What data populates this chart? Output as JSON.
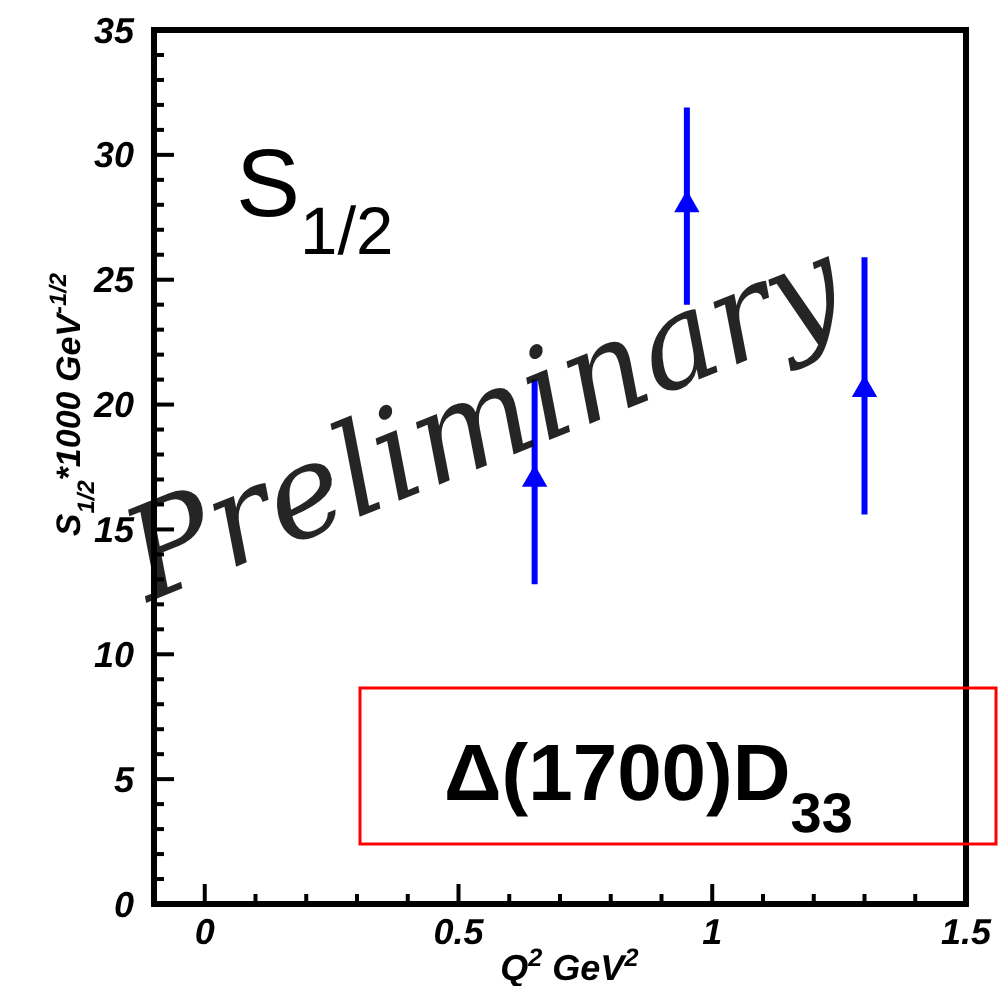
{
  "chart_data": {
    "type": "scatter",
    "xlabel": "Q$^{2}$ GeV$^{2}$",
    "ylabel": "S$_{1/2}$*1000 GeV$^{-1/2}$",
    "annotations": [
      "S$_{1/2}$",
      "Δ(1700)D$_{33}$",
      "Preliminary"
    ],
    "x": [
      0.65,
      0.95,
      1.3
    ],
    "series": [
      {
        "color": "#0000ff",
        "values": [
          17,
          28,
          20.6
        ],
        "errors": [
          [
            12.8,
            21.0
          ],
          [
            24.0,
            31.9
          ],
          [
            15.6,
            25.9
          ]
        ]
      }
    ],
    "marker": "triangle",
    "grid": false,
    "xlim": [
      -0.1,
      1.5
    ],
    "xticks": [
      {
        "value": -0.1,
        "label": null
      },
      0,
      {
        "value": 0.1,
        "label": null
      },
      {
        "value": 0.2,
        "label": null
      },
      {
        "value": 0.3,
        "label": null
      },
      {
        "value": 0.4,
        "label": null
      },
      0.5,
      {
        "value": 0.6,
        "label": null
      },
      {
        "value": 0.7,
        "label": null
      },
      {
        "value": 0.8,
        "label": null
      },
      {
        "value": 0.9,
        "label": null
      },
      1,
      {
        "value": 1.1,
        "label": null
      },
      {
        "value": 1.2,
        "label": null
      },
      {
        "value": 1.3,
        "label": null
      },
      {
        "value": 1.4,
        "label": null
      },
      1.5
    ],
    "ylim": [
      0,
      35
    ],
    "yticks": [
      0,
      {
        "value": 1,
        "label": null
      },
      {
        "value": 2,
        "label": null
      },
      {
        "value": 3,
        "label": null
      },
      {
        "value": 4,
        "label": null
      },
      5,
      {
        "value": 6,
        "label": null
      },
      {
        "value": 7,
        "label": null
      },
      {
        "value": 8,
        "label": null
      },
      {
        "value": 9,
        "label": null
      },
      10,
      {
        "value": 11,
        "label": null
      },
      {
        "value": 12,
        "label": null
      },
      {
        "value": 13,
        "label": null
      },
      {
        "value": 14,
        "label": null
      },
      15,
      {
        "value": 16,
        "label": null
      },
      {
        "value": 17,
        "label": null
      },
      {
        "value": 18,
        "label": null
      },
      {
        "value": 19,
        "label": null
      },
      20,
      {
        "value": 21,
        "label": null
      },
      {
        "value": 22,
        "label": null
      },
      {
        "value": 23,
        "label": null
      },
      {
        "value": 24,
        "label": null
      },
      25,
      {
        "value": 26,
        "label": null
      },
      {
        "value": 27,
        "label": null
      },
      {
        "value": 28,
        "label": null
      },
      {
        "value": 29,
        "label": null
      },
      30,
      {
        "value": 31,
        "label": null
      },
      {
        "value": 32,
        "label": null
      },
      {
        "value": 33,
        "label": null
      },
      {
        "value": 34,
        "label": null
      },
      35
    ]
  }
}
